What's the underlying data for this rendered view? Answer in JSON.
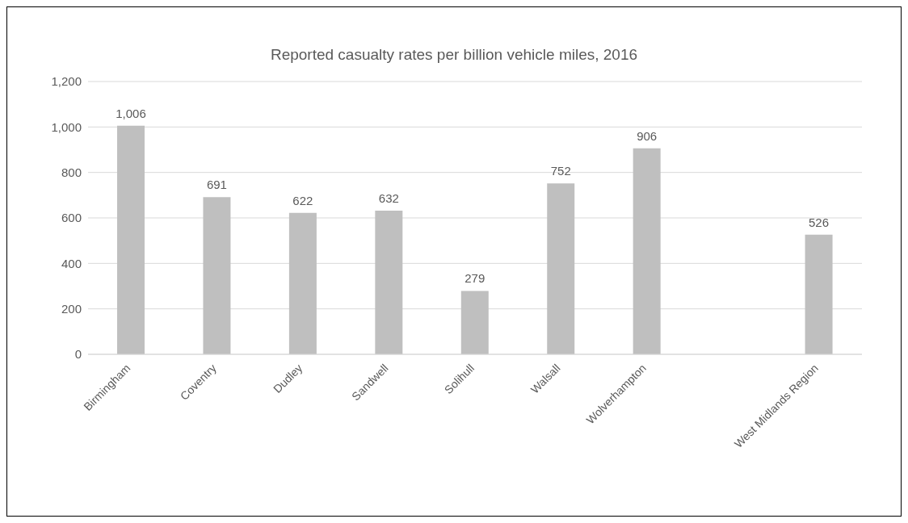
{
  "chart_data": {
    "type": "bar",
    "title": "Reported casualty rates per billion vehicle miles, 2016",
    "categories": [
      "Birmingham",
      "Coventry",
      "Dudley",
      "Sandwell",
      "Solihull",
      "Walsall",
      "Wolverhampton",
      null,
      "West Midlands Region"
    ],
    "values": [
      1006,
      691,
      622,
      632,
      279,
      752,
      906,
      null,
      526
    ],
    "value_labels": [
      "1,006",
      "691",
      "622",
      "632",
      "279",
      "752",
      "906",
      null,
      "526"
    ],
    "color": "#bfbfbf",
    "ylim": [
      0,
      1200
    ],
    "yticks": [
      0,
      200,
      400,
      600,
      800,
      {
        "value": 1000,
        "label": "1,000"
      },
      {
        "value": 1200,
        "label": "1,200"
      }
    ],
    "grid": "y"
  }
}
